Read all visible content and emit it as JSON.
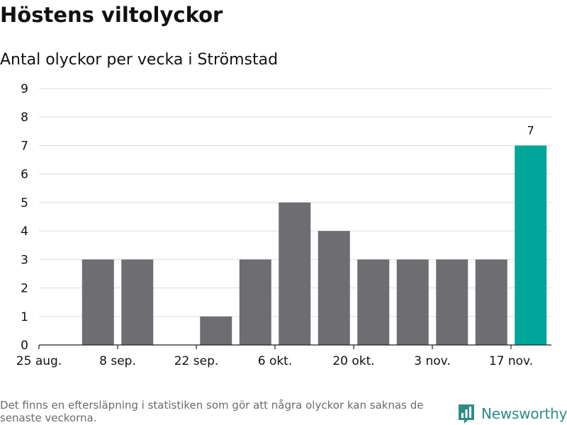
{
  "title": "Höstens viltolyckor",
  "subtitle": "Antal olyckor per vecka i Strömstad",
  "footnote": "Det finns en eftersläpning i statistiken som gör att några olyckor kan saknas de senaste veckorna.",
  "brand": {
    "name": "Newsworthy",
    "icon": "newsworthy-logo-icon",
    "color": "#2e8c87"
  },
  "colors": {
    "bar": "#6e6d72",
    "highlight": "#00a69a",
    "grid": "#dddddd",
    "axis": "#222222",
    "text": "#111111"
  },
  "chart_data": {
    "type": "bar",
    "title": "Antal olyckor per vecka i Strömstad",
    "xlabel": "",
    "ylabel": "",
    "ylim": [
      0,
      9
    ],
    "yticks": [
      0,
      1,
      2,
      3,
      4,
      5,
      6,
      7,
      8,
      9
    ],
    "grid": true,
    "weeks": [
      "25 aug.",
      "1 sep.",
      "8 sep.",
      "15 sep.",
      "22 sep.",
      "29 sep.",
      "6 okt.",
      "13 okt.",
      "20 okt.",
      "27 okt.",
      "3 nov.",
      "10 nov.",
      "17 nov."
    ],
    "xtick_labels": [
      "25 aug.",
      "8 sep.",
      "22 sep.",
      "6 okt.",
      "20 okt.",
      "3 nov.",
      "17 nov."
    ],
    "values": [
      null,
      3,
      3,
      null,
      1,
      3,
      5,
      4,
      3,
      3,
      3,
      3,
      7
    ],
    "highlight_index": 12,
    "highlight_label": "7"
  }
}
